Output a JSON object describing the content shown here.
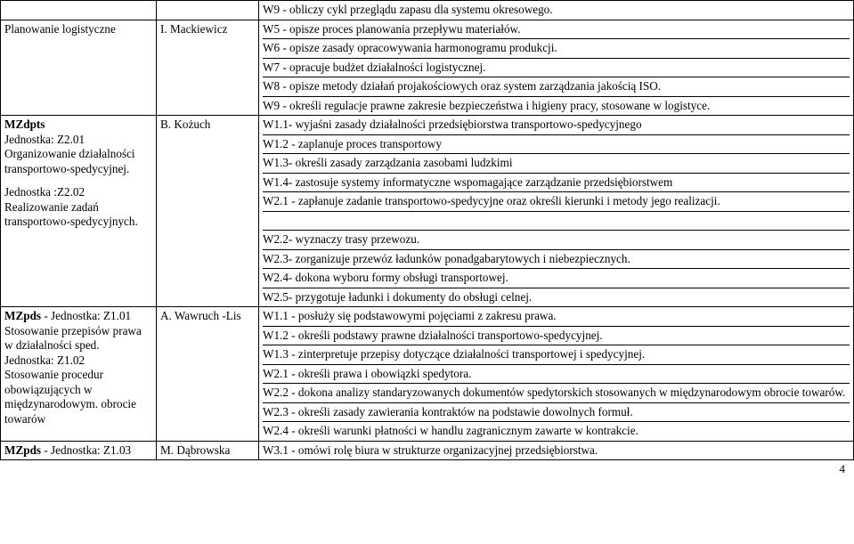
{
  "rows": [
    {
      "c1": "",
      "c2": "",
      "c3": "W9 - obliczy cykl przeglądu zapasu dla systemu okresowego."
    },
    {
      "c1": "Planowanie logistyczne",
      "c2": "I. Mackiewicz",
      "c3_lines": [
        "W5 - opisze proces planowania przepływu  materiałów.",
        "W6 - opisze zasady opracowywania harmonogramu produkcji.",
        "W7 - opracuje budżet działalności logistycznej.",
        "W8 - opisze metody działań projakościowych oraz system zarządzania jakością ISO.",
        "W9 - określi regulacje prawne zakresie bezpieczeństwa i higieny pracy, stosowane w logistyce."
      ]
    },
    {
      "c1_lines": [
        "MZdpts",
        "Jednostka: Z2.01",
        "Organizowanie działalności transportowo-spedycyjnej.",
        "",
        "Jednostka :Z2.02",
        "Realizowanie zadań transportowo-spedycyjnych."
      ],
      "c2": "B. Kożuch",
      "c3_lines": [
        "W1.1- wyjaśni zasady działalności przedsiębiorstwa transportowo-spedycyjnego",
        "W1.2 - zaplanuje proces transportowy",
        "W1.3- określi zasady zarządzania zasobami ludzkimi",
        "W1.4- zastosuje systemy informatyczne wspomagające zarządzanie przedsiębiorstwem",
        "W2.1 - zapłanuje zadanie transportowo-spedycyjne oraz określi kierunki i metody jego realizacji.",
        "",
        "W2.2- wyznaczy trasy przewozu.",
        "W2.3- zorganizuje przewóz ładunków ponadgabarytowych i niebezpiecznych.",
        "W2.4- dokona wyboru formy obsługi transportowej.",
        "W2.5- przygotuje ładunki i dokumenty do obsługi celnej."
      ]
    },
    {
      "c1_lines": [
        "MZpds - Jednostka: Z1.01",
        "Stosowanie przepisów prawa w działalności sped.",
        "Jednostka: Z1.02",
        "Stosowanie procedur obowiązujących w międzynarodowym. obrocie towarów"
      ],
      "c2": "A. Wawruch -Lis",
      "c3_lines": [
        "W1.1 - posłuży się podstawowymi pojęciami z zakresu prawa.",
        "W1.2 - określi podstawy prawne działalności transportowo-spedycyjnej.",
        "W1.3 - zinterpretuje przepisy dotyczące działalności transportowej i spedycyjnej.",
        "W2.1 - określi prawa i obowiązki spedytora.",
        "W2.2 - dokona analizy standaryzowanych dokumentów spedytorskich stosowanych w międzynarodowym obrocie towarów.",
        "W2.3 - określi zasady zawierania kontraktów na podstawie dowolnych formuł.",
        "W2.4 - określi warunki płatności w handlu zagranicznym zawarte w kontrakcie."
      ]
    },
    {
      "c1": "MZpds - Jednostka: Z1.03",
      "c2": "M. Dąbrowska",
      "c3": "W3.1 - omówi rolę biura w strukturze organizacyjnej przedsiębiorstwa."
    }
  ],
  "page_number": "4",
  "bold_tokens": [
    "MZdpts",
    "MZpds"
  ]
}
